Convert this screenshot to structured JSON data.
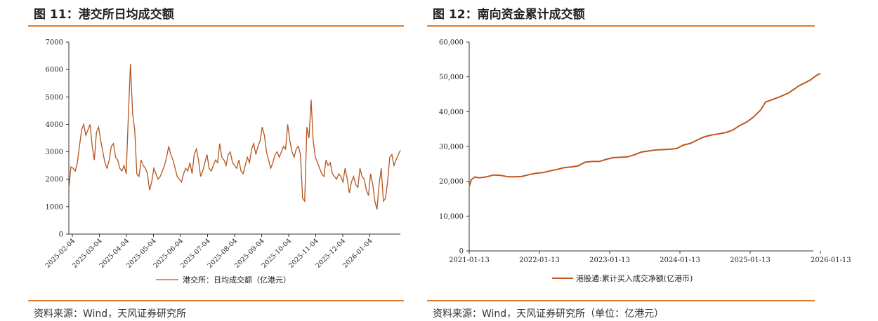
{
  "left": {
    "title": "图 11：港交所日均成交额",
    "source": "资料来源：Wind，天风证券研究所",
    "line_color": "#b5541f",
    "rule_color": "#e07a2e",
    "chart_data": {
      "type": "line",
      "x_ticks": [
        "2025-02-04",
        "2025-03-04",
        "2025-04-04",
        "2025-05-04",
        "2025-06-04",
        "2025-07-04",
        "2025-08-04",
        "2025-09-04",
        "2025-10-04",
        "2025-11-04",
        "2025-12-04",
        "2026-01-04"
      ],
      "y_ticks": [
        "0",
        "1000",
        "2000",
        "3000",
        "4000",
        "5000",
        "6000",
        "7000"
      ],
      "ylim": [
        0,
        7000
      ],
      "series": [
        {
          "name": "港交所：日均成交额（亿港元）",
          "values": [
            1650,
            2450,
            2400,
            2300,
            2600,
            3200,
            3800,
            4000,
            3600,
            3800,
            4000,
            3200,
            2700,
            3700,
            3900,
            3400,
            3000,
            2600,
            2400,
            2700,
            3200,
            3300,
            2800,
            2700,
            2400,
            2300,
            2500,
            2200,
            4300,
            6200,
            4400,
            3800,
            2200,
            2100,
            2700,
            2500,
            2400,
            2200,
            1600,
            1900,
            2400,
            2200,
            2000,
            2100,
            2300,
            2500,
            2800,
            3200,
            2900,
            2700,
            2400,
            2100,
            2000,
            1900,
            2200,
            2400,
            2300,
            2600,
            2200,
            2900,
            3100,
            2700,
            2100,
            2300,
            2600,
            2900,
            2400,
            2300,
            2500,
            2700,
            2600,
            3300,
            2800,
            2700,
            2500,
            2900,
            3000,
            2600,
            2500,
            2400,
            2700,
            2300,
            2200,
            2500,
            2800,
            2600,
            3100,
            3300,
            2900,
            3200,
            3400,
            3900,
            3600,
            3000,
            2700,
            2400,
            2600,
            2900,
            3000,
            2800,
            3000,
            3200,
            3100,
            4000,
            3400,
            3000,
            2800,
            3100,
            3200,
            2900,
            1300,
            1200,
            3900,
            3500,
            4900,
            3400,
            2800,
            2600,
            2400,
            2200,
            2100,
            2700,
            2500,
            2600,
            2200,
            2100,
            2000,
            2200,
            2100,
            1900,
            2400,
            2000,
            1500,
            1900,
            2100,
            1800,
            1700,
            2400,
            2100,
            2000,
            1600,
            1400,
            2200,
            1800,
            1200,
            900,
            1800,
            2400,
            1200,
            1300,
            1900,
            2800,
            2900,
            2500,
            2700,
            2900,
            3050
          ]
        }
      ]
    }
  },
  "right": {
    "title": "图 12：南向资金累计成交额",
    "source": "资料来源：Wind，天风证券研究所（单位：亿港元）",
    "line_color": "#c0561d",
    "rule_color": "#e07a2e",
    "chart_data": {
      "type": "line",
      "x_ticks": [
        "2021-01-13",
        "2022-01-13",
        "2023-01-13",
        "2024-01-13",
        "2025-01-13",
        "2026-01-13"
      ],
      "y_ticks": [
        "0",
        "10,000",
        "20,000",
        "30,000",
        "40,000",
        "50,000",
        "60,000"
      ],
      "ylim": [
        0,
        60000
      ],
      "series": [
        {
          "name": "港股通:累计买入成交净额(亿港币)",
          "x": [
            2021.0,
            2021.03,
            2021.08,
            2021.15,
            2021.25,
            2021.35,
            2021.45,
            2021.55,
            2021.65,
            2021.75,
            2021.85,
            2021.95,
            2022.05,
            2022.15,
            2022.25,
            2022.35,
            2022.45,
            2022.55,
            2022.65,
            2022.75,
            2022.85,
            2022.95,
            2023.05,
            2023.15,
            2023.25,
            2023.35,
            2023.45,
            2023.55,
            2023.65,
            2023.75,
            2023.85,
            2023.95,
            2024.05,
            2024.15,
            2024.25,
            2024.35,
            2024.45,
            2024.55,
            2024.65,
            2024.75,
            2024.85,
            2024.95,
            2025.05,
            2025.15,
            2025.22,
            2025.28,
            2025.4,
            2025.55,
            2025.7,
            2025.85,
            2025.95,
            2026.0
          ],
          "values": [
            18500,
            20500,
            21200,
            21000,
            21300,
            21800,
            21700,
            21300,
            21300,
            21400,
            21900,
            22300,
            22500,
            23000,
            23400,
            23900,
            24100,
            24400,
            25500,
            25700,
            25700,
            26300,
            26800,
            26900,
            27000,
            27600,
            28400,
            28700,
            29000,
            29100,
            29200,
            29400,
            30400,
            30900,
            31900,
            32800,
            33300,
            33600,
            34000,
            34700,
            36000,
            37000,
            38500,
            40500,
            42800,
            43200,
            44100,
            45400,
            47500,
            49000,
            50500,
            51000
          ]
        }
      ]
    }
  }
}
